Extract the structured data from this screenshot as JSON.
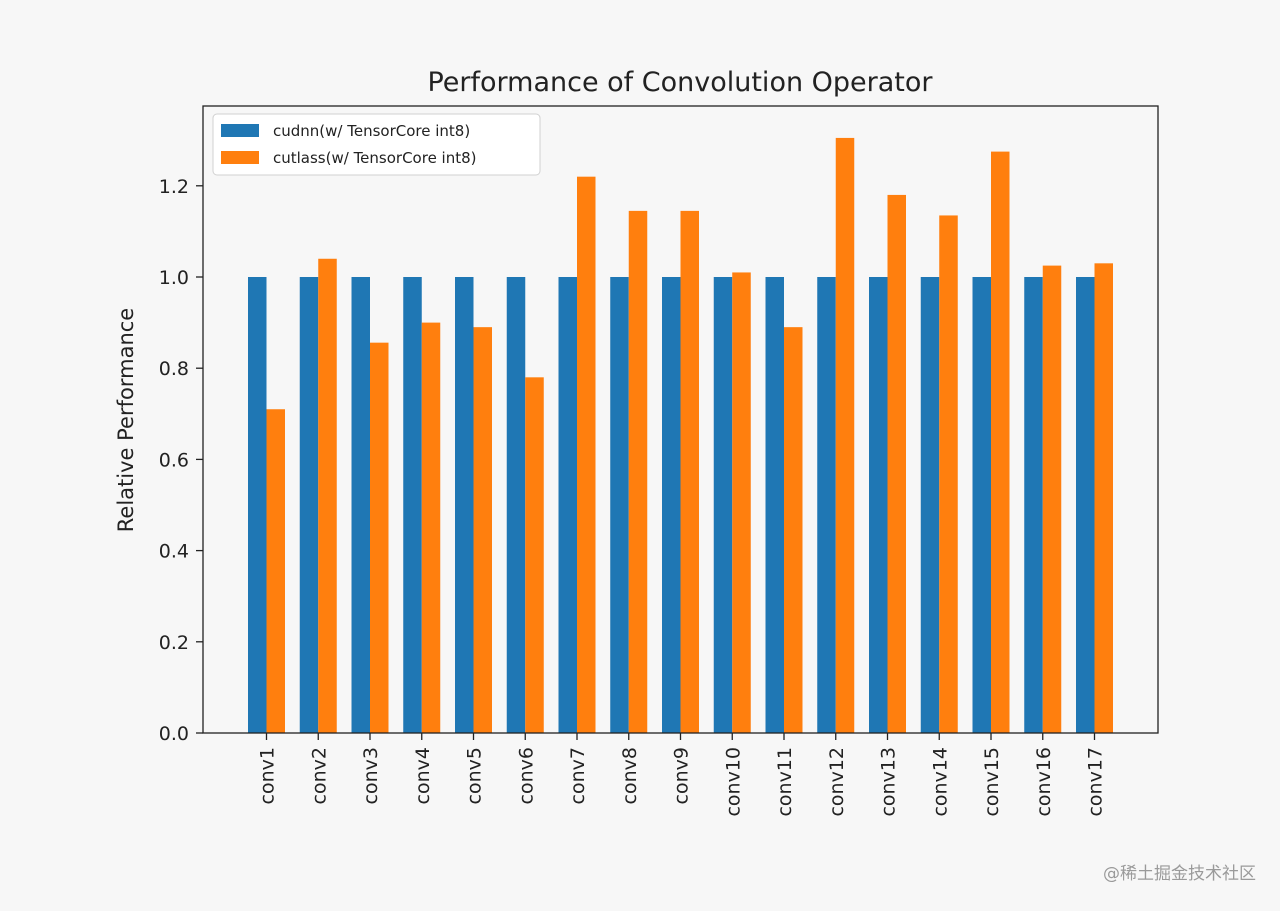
{
  "chart_data": {
    "type": "bar",
    "title": "Performance of Convolution Operator",
    "xlabel": "",
    "ylabel": "Relative Performance",
    "ylim": [
      0,
      1.375
    ],
    "yticks": [
      "0.0",
      "0.2",
      "0.4",
      "0.6",
      "0.8",
      "1.0",
      "1.2"
    ],
    "ytick_values": [
      0,
      0.2,
      0.4,
      0.6,
      0.8,
      1.0,
      1.2
    ],
    "categories": [
      "conv1",
      "conv2",
      "conv3",
      "conv4",
      "conv5",
      "conv6",
      "conv7",
      "conv8",
      "conv9",
      "conv10",
      "conv11",
      "conv12",
      "conv13",
      "conv14",
      "conv15",
      "conv16",
      "conv17"
    ],
    "series": [
      {
        "name": "cudnn(w/ TensorCore int8)",
        "color": "#1f77b4",
        "values": [
          1.0,
          1.0,
          1.0,
          1.0,
          1.0,
          1.0,
          1.0,
          1.0,
          1.0,
          1.0,
          1.0,
          1.0,
          1.0,
          1.0,
          1.0,
          1.0,
          1.0
        ]
      },
      {
        "name": "cutlass(w/ TensorCore int8)",
        "color": "#ff7f0e",
        "values": [
          0.71,
          1.04,
          0.856,
          0.9,
          0.89,
          0.78,
          1.22,
          1.145,
          1.145,
          1.01,
          0.89,
          1.305,
          1.18,
          1.135,
          1.275,
          1.025,
          1.03
        ]
      }
    ],
    "grid": false,
    "legend_position": "top-left"
  },
  "watermark": "@稀土掘金技术社区"
}
